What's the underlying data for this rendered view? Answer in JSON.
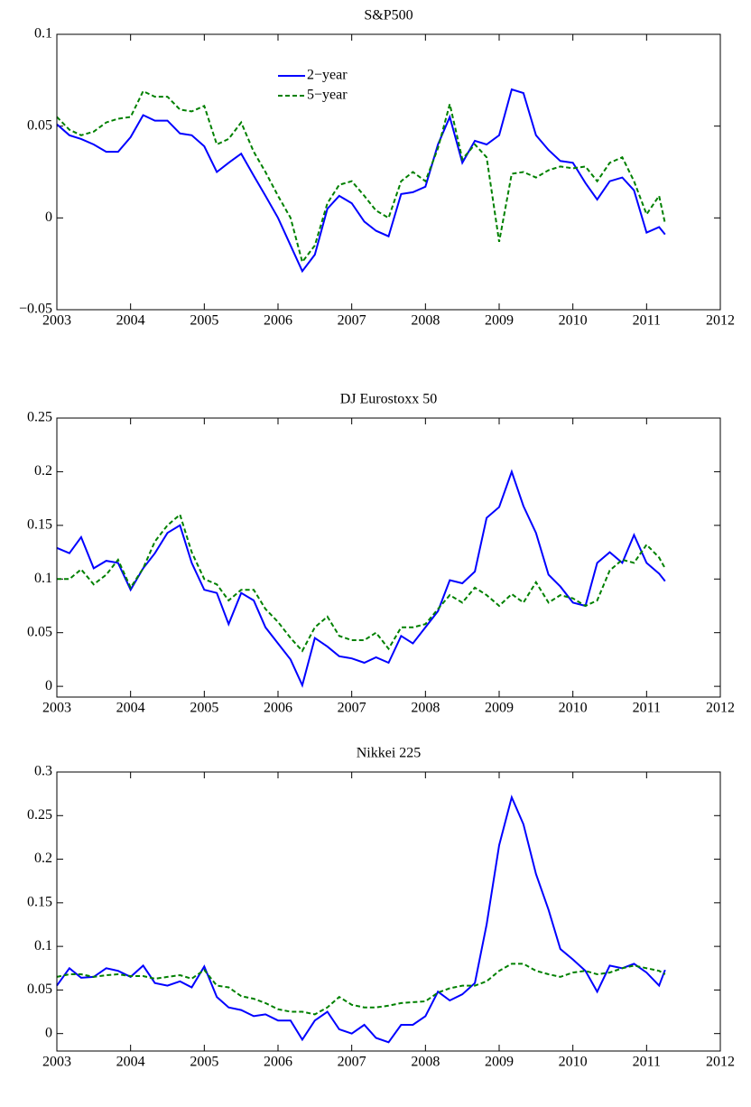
{
  "chart_data": [
    {
      "type": "line",
      "title": "S&P500",
      "legend": "upper center",
      "x": [
        2003,
        2003.17,
        2003.33,
        2003.5,
        2003.67,
        2003.83,
        2004,
        2004.17,
        2004.33,
        2004.5,
        2004.67,
        2004.83,
        2005,
        2005.17,
        2005.33,
        2005.5,
        2005.67,
        2005.83,
        2006,
        2006.17,
        2006.33,
        2006.5,
        2006.67,
        2006.83,
        2007,
        2007.17,
        2007.33,
        2007.5,
        2007.67,
        2007.83,
        2008,
        2008.17,
        2008.33,
        2008.5,
        2008.67,
        2008.83,
        2009,
        2009.17,
        2009.33,
        2009.5,
        2009.67,
        2009.83,
        2010,
        2010.17,
        2010.33,
        2010.5,
        2010.67,
        2010.83,
        2011,
        2011.17,
        2011.25
      ],
      "series": [
        {
          "name": "2−year",
          "color": "#0000ff",
          "linestyle": "solid",
          "values": [
            0.051,
            0.045,
            0.043,
            0.04,
            0.036,
            0.036,
            0.044,
            0.056,
            0.053,
            0.053,
            0.046,
            0.045,
            0.039,
            0.025,
            0.03,
            0.035,
            0.023,
            0.012,
            0.0,
            -0.015,
            -0.029,
            -0.02,
            0.005,
            0.012,
            0.008,
            -0.002,
            -0.007,
            -0.01,
            0.013,
            0.014,
            0.017,
            0.04,
            0.055,
            0.03,
            0.042,
            0.04,
            0.045,
            0.07,
            0.068,
            0.045,
            0.037,
            0.031,
            0.03,
            0.019,
            0.01,
            0.02,
            0.022,
            0.015,
            -0.008,
            -0.005,
            -0.009
          ]
        },
        {
          "name": "5−year",
          "color": "#008000",
          "linestyle": "dashed",
          "values": [
            0.055,
            0.048,
            0.045,
            0.047,
            0.052,
            0.054,
            0.055,
            0.069,
            0.066,
            0.066,
            0.059,
            0.058,
            0.061,
            0.04,
            0.043,
            0.052,
            0.036,
            0.025,
            0.012,
            0.0,
            -0.024,
            -0.015,
            0.008,
            0.018,
            0.02,
            0.012,
            0.004,
            0.0,
            0.02,
            0.025,
            0.02,
            0.038,
            0.062,
            0.032,
            0.04,
            0.033,
            -0.013,
            0.024,
            0.025,
            0.022,
            0.026,
            0.028,
            0.027,
            0.028,
            0.02,
            0.03,
            0.033,
            0.02,
            0.002,
            0.012,
            -0.003
          ]
        }
      ],
      "xlim": [
        2003,
        2012
      ],
      "xticks": [
        2003,
        2004,
        2005,
        2006,
        2007,
        2008,
        2009,
        2010,
        2011,
        2012
      ],
      "ylim": [
        -0.05,
        0.1
      ],
      "yticks": [
        {
          "value": -0.05,
          "label": "−0.05"
        },
        0,
        0.05,
        0.1
      ]
    },
    {
      "type": "line",
      "title": "DJ Eurostoxx 50",
      "x": [
        2003,
        2003.17,
        2003.33,
        2003.5,
        2003.67,
        2003.83,
        2004,
        2004.17,
        2004.33,
        2004.5,
        2004.67,
        2004.83,
        2005,
        2005.17,
        2005.33,
        2005.5,
        2005.67,
        2005.83,
        2006,
        2006.17,
        2006.33,
        2006.5,
        2006.67,
        2006.83,
        2007,
        2007.17,
        2007.33,
        2007.5,
        2007.67,
        2007.83,
        2008,
        2008.17,
        2008.33,
        2008.5,
        2008.67,
        2008.83,
        2009,
        2009.17,
        2009.33,
        2009.5,
        2009.67,
        2009.83,
        2010,
        2010.17,
        2010.33,
        2010.5,
        2010.67,
        2010.83,
        2011,
        2011.17,
        2011.25
      ],
      "series": [
        {
          "color": "#0000ff",
          "linestyle": "solid",
          "values": [
            0.129,
            0.124,
            0.139,
            0.11,
            0.117,
            0.115,
            0.09,
            0.11,
            0.124,
            0.143,
            0.15,
            0.115,
            0.09,
            0.087,
            0.058,
            0.087,
            0.08,
            0.055,
            0.04,
            0.025,
            0.001,
            0.045,
            0.037,
            0.028,
            0.026,
            0.022,
            0.027,
            0.022,
            0.047,
            0.04,
            0.055,
            0.07,
            0.099,
            0.096,
            0.107,
            0.157,
            0.167,
            0.2,
            0.168,
            0.143,
            0.104,
            0.093,
            0.078,
            0.075,
            0.115,
            0.125,
            0.115,
            0.141,
            0.115,
            0.105,
            0.098
          ]
        },
        {
          "color": "#008000",
          "linestyle": "dashed",
          "values": [
            0.1,
            0.1,
            0.109,
            0.095,
            0.104,
            0.118,
            0.092,
            0.11,
            0.135,
            0.15,
            0.16,
            0.125,
            0.1,
            0.095,
            0.08,
            0.09,
            0.09,
            0.072,
            0.06,
            0.045,
            0.033,
            0.055,
            0.065,
            0.047,
            0.043,
            0.043,
            0.05,
            0.035,
            0.055,
            0.055,
            0.058,
            0.072,
            0.085,
            0.078,
            0.092,
            0.085,
            0.075,
            0.086,
            0.078,
            0.097,
            0.078,
            0.085,
            0.082,
            0.075,
            0.08,
            0.108,
            0.118,
            0.115,
            0.132,
            0.12,
            0.11
          ]
        }
      ],
      "xlim": [
        2003,
        2012
      ],
      "xticks": [
        2003,
        2004,
        2005,
        2006,
        2007,
        2008,
        2009,
        2010,
        2011,
        2012
      ],
      "ylim": [
        -0.01,
        0.25
      ],
      "yticks": [
        0,
        0.05,
        0.1,
        0.15,
        0.2,
        0.25
      ]
    },
    {
      "type": "line",
      "title": "Nikkei 225",
      "x": [
        2003,
        2003.17,
        2003.33,
        2003.5,
        2003.67,
        2003.83,
        2004,
        2004.17,
        2004.33,
        2004.5,
        2004.67,
        2004.83,
        2005,
        2005.17,
        2005.33,
        2005.5,
        2005.67,
        2005.83,
        2006,
        2006.17,
        2006.33,
        2006.5,
        2006.67,
        2006.83,
        2007,
        2007.17,
        2007.33,
        2007.5,
        2007.67,
        2007.83,
        2008,
        2008.17,
        2008.33,
        2008.5,
        2008.67,
        2008.83,
        2009,
        2009.17,
        2009.33,
        2009.5,
        2009.67,
        2009.83,
        2010,
        2010.17,
        2010.33,
        2010.5,
        2010.67,
        2010.83,
        2011,
        2011.17,
        2011.25
      ],
      "series": [
        {
          "color": "#0000ff",
          "linestyle": "solid",
          "values": [
            0.055,
            0.075,
            0.064,
            0.065,
            0.075,
            0.072,
            0.065,
            0.078,
            0.058,
            0.055,
            0.06,
            0.053,
            0.077,
            0.042,
            0.03,
            0.027,
            0.02,
            0.022,
            0.015,
            0.015,
            -0.007,
            0.015,
            0.025,
            0.005,
            0.0,
            0.01,
            -0.005,
            -0.01,
            0.01,
            0.01,
            0.02,
            0.048,
            0.038,
            0.045,
            0.058,
            0.125,
            0.216,
            0.271,
            0.24,
            0.183,
            0.142,
            0.097,
            0.085,
            0.072,
            0.048,
            0.078,
            0.075,
            0.08,
            0.07,
            0.055,
            0.073
          ]
        },
        {
          "color": "#008000",
          "linestyle": "dashed",
          "values": [
            0.065,
            0.068,
            0.068,
            0.065,
            0.067,
            0.068,
            0.066,
            0.066,
            0.063,
            0.065,
            0.067,
            0.063,
            0.073,
            0.055,
            0.053,
            0.043,
            0.04,
            0.035,
            0.028,
            0.025,
            0.025,
            0.022,
            0.03,
            0.042,
            0.033,
            0.03,
            0.03,
            0.032,
            0.035,
            0.036,
            0.037,
            0.047,
            0.052,
            0.055,
            0.055,
            0.06,
            0.072,
            0.08,
            0.08,
            0.072,
            0.068,
            0.065,
            0.07,
            0.072,
            0.068,
            0.07,
            0.075,
            0.078,
            0.075,
            0.072,
            0.068
          ]
        }
      ],
      "xlim": [
        2003,
        2012
      ],
      "xticks": [
        2003,
        2004,
        2005,
        2006,
        2007,
        2008,
        2009,
        2010,
        2011,
        2012
      ],
      "ylim": [
        -0.02,
        0.3
      ],
      "yticks": [
        0,
        0.05,
        0.1,
        0.15,
        0.2,
        0.25,
        0.3
      ]
    }
  ]
}
